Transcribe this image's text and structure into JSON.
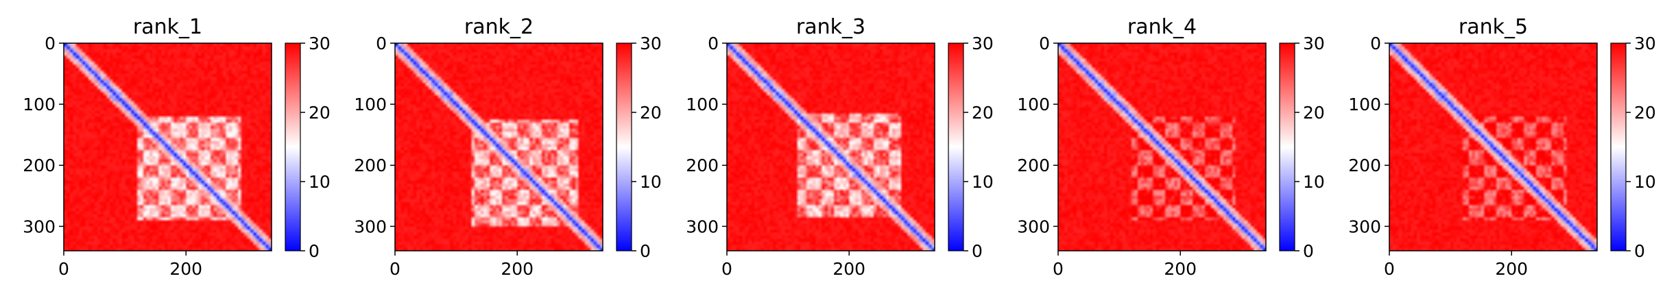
{
  "figure": {
    "panel_count": 5
  },
  "chart_data": [
    {
      "type": "heatmap",
      "title": "rank_1",
      "xlabel": "",
      "ylabel": "",
      "matrix_size": 340,
      "xlim": [
        0,
        340
      ],
      "ylim": [
        340,
        0
      ],
      "x_ticks": [
        0,
        200
      ],
      "y_ticks": [
        0,
        100,
        200,
        300
      ],
      "colorbar": {
        "min": 0,
        "max": 30,
        "ticks": [
          0,
          10,
          20,
          30
        ],
        "colormap": "bwr"
      },
      "features": {
        "diagonal": "low values (blue) along the diagonal",
        "blocks": [
          {
            "range": [
              120,
              290
            ],
            "value": 14
          }
        ],
        "background_value": 30
      },
      "grid": false
    },
    {
      "type": "heatmap",
      "title": "rank_2",
      "xlabel": "",
      "ylabel": "",
      "matrix_size": 340,
      "xlim": [
        0,
        340
      ],
      "ylim": [
        340,
        0
      ],
      "x_ticks": [
        0,
        200
      ],
      "y_ticks": [
        0,
        100,
        200,
        300
      ],
      "colorbar": {
        "min": 0,
        "max": 30,
        "ticks": [
          0,
          10,
          20,
          30
        ],
        "colormap": "bwr"
      },
      "features": {
        "diagonal": "low values (blue) along the diagonal",
        "blocks": [
          {
            "range": [
              125,
              300
            ],
            "value": 15
          }
        ],
        "background_value": 30
      },
      "grid": false
    },
    {
      "type": "heatmap",
      "title": "rank_3",
      "xlabel": "",
      "ylabel": "",
      "matrix_size": 340,
      "xlim": [
        0,
        340
      ],
      "ylim": [
        340,
        0
      ],
      "x_ticks": [
        0,
        200
      ],
      "y_ticks": [
        0,
        100,
        200,
        300
      ],
      "colorbar": {
        "min": 0,
        "max": 30,
        "ticks": [
          0,
          10,
          20,
          30
        ],
        "colormap": "bwr"
      },
      "features": {
        "diagonal": "low values (blue) along the diagonal",
        "blocks": [
          {
            "range": [
              115,
              285
            ],
            "value": 15
          }
        ],
        "background_value": 30
      },
      "grid": false
    },
    {
      "type": "heatmap",
      "title": "rank_4",
      "xlabel": "",
      "ylabel": "",
      "matrix_size": 340,
      "xlim": [
        0,
        340
      ],
      "ylim": [
        340,
        0
      ],
      "x_ticks": [
        0,
        200
      ],
      "y_ticks": [
        0,
        100,
        200,
        300
      ],
      "colorbar": {
        "min": 0,
        "max": 30,
        "ticks": [
          0,
          10,
          20,
          30
        ],
        "colormap": "bwr"
      },
      "features": {
        "diagonal": "low values (blue) along the diagonal",
        "blocks": [
          {
            "range": [
              120,
              290
            ],
            "value": 21
          }
        ],
        "background_value": 30
      },
      "grid": false
    },
    {
      "type": "heatmap",
      "title": "rank_5",
      "xlabel": "",
      "ylabel": "",
      "matrix_size": 340,
      "xlim": [
        0,
        340
      ],
      "ylim": [
        340,
        0
      ],
      "x_ticks": [
        0,
        200
      ],
      "y_ticks": [
        0,
        100,
        200,
        300
      ],
      "colorbar": {
        "min": 0,
        "max": 30,
        "ticks": [
          0,
          10,
          20,
          30
        ],
        "colormap": "bwr"
      },
      "features": {
        "diagonal": "low values (blue) along the diagonal",
        "blocks": [
          {
            "range": [
              120,
              290
            ],
            "value": 21
          }
        ],
        "background_value": 30
      },
      "grid": false
    }
  ]
}
